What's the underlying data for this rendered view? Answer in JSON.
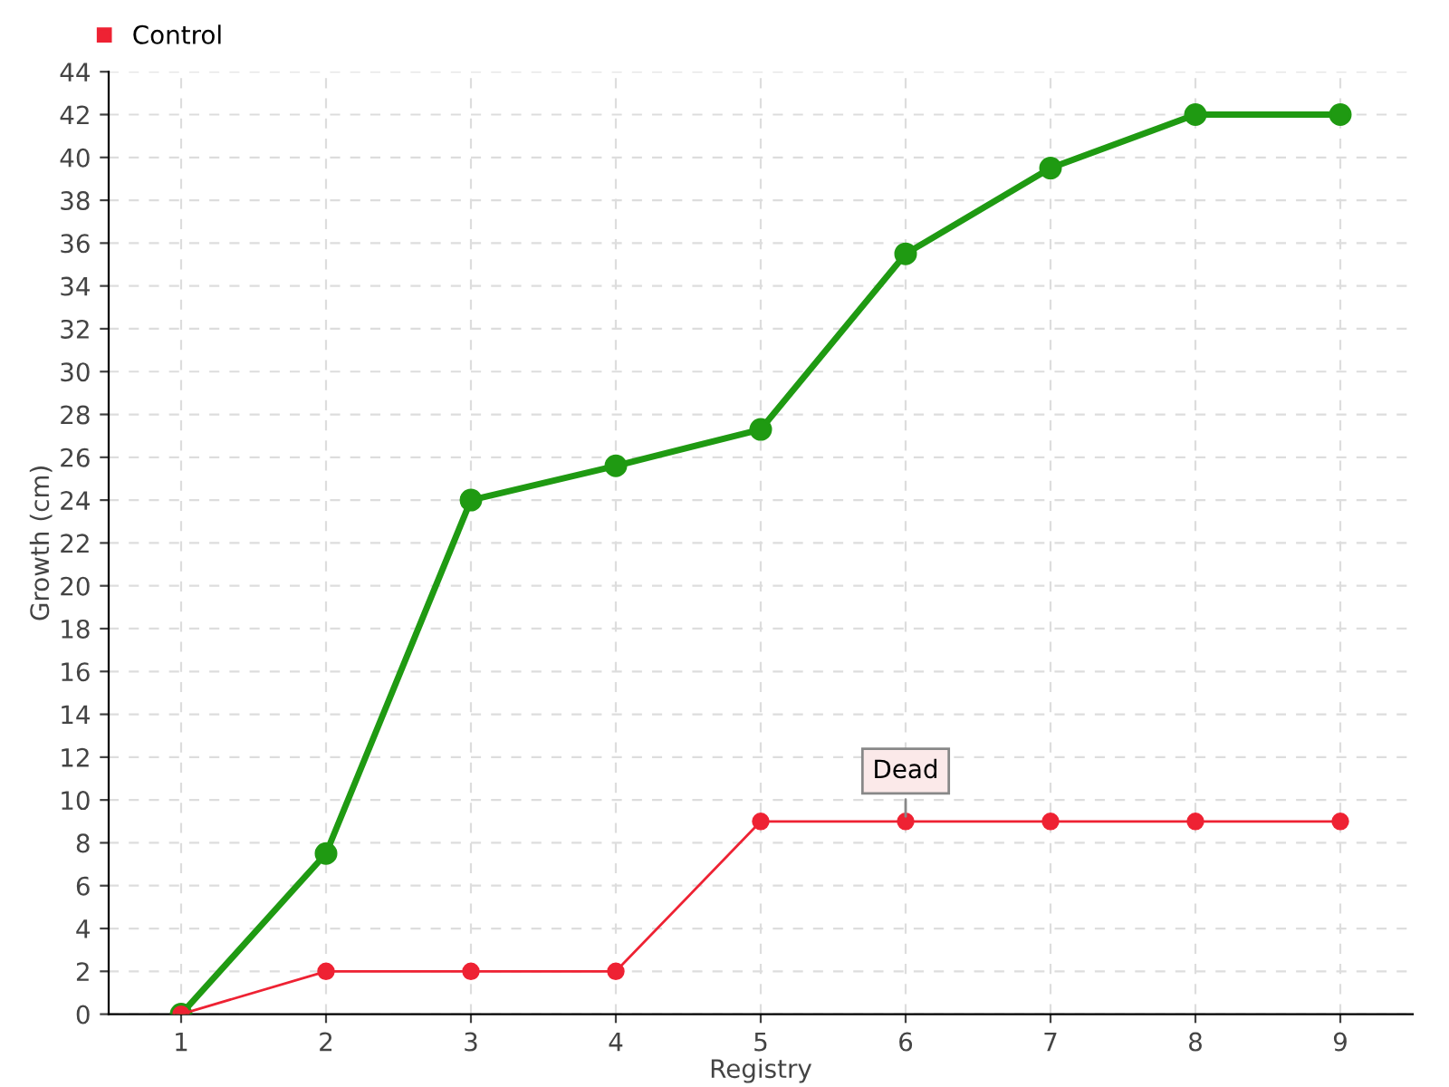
{
  "chart_data": {
    "type": "line",
    "xlabel": "Registry",
    "ylabel": "Growth (cm)",
    "categories": [
      "1",
      "2",
      "3",
      "4",
      "5",
      "6",
      "7",
      "8",
      "9"
    ],
    "series": [
      {
        "color": "#1f9a12",
        "values": [
          0,
          7.5,
          24,
          25.6,
          27.3,
          35.5,
          39.5,
          42,
          42
        ]
      },
      {
        "name": "Control",
        "color": "#ee2233",
        "values": [
          0,
          2,
          2,
          2,
          9,
          9,
          9,
          9,
          9
        ]
      }
    ],
    "ylim": [
      0,
      44
    ],
    "yticks": [
      0,
      2,
      4,
      6,
      8,
      10,
      12,
      14,
      16,
      18,
      20,
      22,
      24,
      26,
      28,
      30,
      32,
      34,
      36,
      38,
      40,
      42,
      44
    ],
    "grid": true,
    "legend": "top left",
    "marker": "circle",
    "annotations": [
      {
        "text": "Dead",
        "x": "6",
        "y": 9
      }
    ]
  }
}
